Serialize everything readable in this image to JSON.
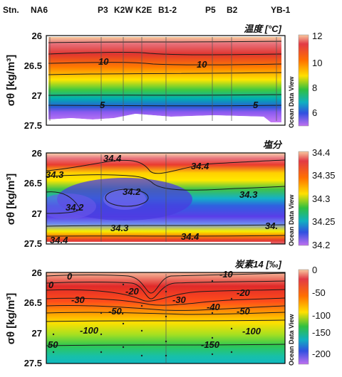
{
  "stations": {
    "labels": [
      "Stn.",
      "NA6",
      "P3",
      "K2W",
      "K2E",
      "B1-2",
      "P5",
      "B2",
      "YB-1"
    ]
  },
  "watermark": "Ocean Data View",
  "panels": [
    {
      "title": "温度 [°C]",
      "ylabel": "σθ [kg/m³]",
      "yticks": [
        "26",
        "26.5",
        "27",
        "27.5"
      ],
      "colorbar_ticks": [
        "12",
        "10",
        "8",
        "6"
      ]
    },
    {
      "title": "塩分",
      "ylabel": "σθ [kg/m³]",
      "yticks": [
        "26",
        "26.5",
        "27",
        "27.5"
      ],
      "colorbar_ticks": [
        "34.4",
        "34.35",
        "34.3",
        "34.25",
        "34.2"
      ]
    },
    {
      "title": "炭素14 [‰]",
      "ylabel": "σθ [kg/m³]",
      "yticks": [
        "26",
        "26.5",
        "27",
        "27.5"
      ],
      "colorbar_ticks": [
        "0",
        "-50",
        "-100",
        "-150",
        "-200"
      ]
    }
  ],
  "chart_data": [
    {
      "type": "heatmap",
      "title": "温度 [°C]",
      "ylabel": "σθ [kg/m³]",
      "ylim": [
        27.5,
        26
      ],
      "colorbar_range": [
        4.5,
        12
      ],
      "colormap": "odv-rainbow",
      "contours": [
        {
          "value": 10,
          "sigma": 26.32,
          "labels": [
            "10",
            "10"
          ]
        },
        {
          "value": 5,
          "sigma": 27.08,
          "labels": [
            "5",
            "5"
          ]
        }
      ],
      "contour_label_positions": [
        {
          "text": "10",
          "station": "P3",
          "sigma": 26.34
        },
        {
          "text": "10",
          "station": "P5",
          "sigma": 26.38
        },
        {
          "text": "5",
          "station": "P3",
          "sigma": 27.11
        },
        {
          "text": "5",
          "station": "YB-1",
          "sigma": 27.11
        }
      ]
    },
    {
      "type": "heatmap",
      "title": "塩分",
      "ylabel": "σθ [kg/m³]",
      "ylim": [
        27.5,
        26
      ],
      "colorbar_range": [
        34.2,
        34.4
      ],
      "colormap": "odv-rainbow",
      "contours": [
        {
          "value": 34.4
        },
        {
          "value": 34.3
        },
        {
          "value": 34.2
        }
      ],
      "contour_label_positions": [
        {
          "text": "34.4",
          "station": "P3",
          "sigma": 26.05
        },
        {
          "text": "34.4",
          "station": "B1-2",
          "sigma": 26.17
        },
        {
          "text": "34.3",
          "station": "NA6",
          "sigma": 26.35
        },
        {
          "text": "34.2",
          "station": "K2W",
          "sigma": 26.63
        },
        {
          "text": "34.2",
          "station": "NA6",
          "sigma": 26.92
        },
        {
          "text": "34.3",
          "station": "B2",
          "sigma": 26.7
        },
        {
          "text": "34.3",
          "station": "P3",
          "sigma": 27.24
        },
        {
          "text": "34.4",
          "station": "NA6",
          "sigma": 27.45
        },
        {
          "text": "34.4",
          "station": "P5",
          "sigma": 27.38
        },
        {
          "text": "34.",
          "station": "YB-1",
          "sigma": 27.24
        }
      ]
    },
    {
      "type": "heatmap",
      "title": "炭素14 [‰]",
      "ylabel": "σθ [kg/m³]",
      "ylim": [
        27.5,
        26
      ],
      "colorbar_range": [
        -220,
        0
      ],
      "colormap": "odv-rainbow",
      "contours": [
        {
          "value": 0
        },
        {
          "value": -10
        },
        {
          "value": -20
        },
        {
          "value": -30
        },
        {
          "value": -40
        },
        {
          "value": -50
        },
        {
          "value": -100
        },
        {
          "value": -150
        }
      ],
      "contour_label_positions": [
        {
          "text": "0",
          "station": "NA6",
          "sigma": 26.03
        },
        {
          "text": "-10",
          "station": "B2",
          "sigma": 26.01
        },
        {
          "text": "0",
          "station": "Stn.",
          "sigma": 26.22
        },
        {
          "text": "-20",
          "station": "K2W",
          "sigma": 26.24
        },
        {
          "text": "-20",
          "station": "B2",
          "sigma": 26.26
        },
        {
          "text": "-30",
          "station": "NA6",
          "sigma": 26.44
        },
        {
          "text": "-30",
          "station": "B1-2",
          "sigma": 26.44
        },
        {
          "text": "-40",
          "station": "P5",
          "sigma": 26.55
        },
        {
          "text": "-50",
          "station": "B2",
          "sigma": 26.66
        },
        {
          "text": "-50.",
          "station": "P3",
          "sigma": 26.65
        },
        {
          "text": "-100",
          "station": "NA6",
          "sigma": 26.95
        },
        {
          "text": "-100",
          "station": "YB-1",
          "sigma": 26.95
        },
        {
          "text": "-150",
          "station": "P5",
          "sigma": 27.25
        },
        {
          "text": "50",
          "station": "Stn.",
          "sigma": 27.25
        }
      ]
    }
  ]
}
